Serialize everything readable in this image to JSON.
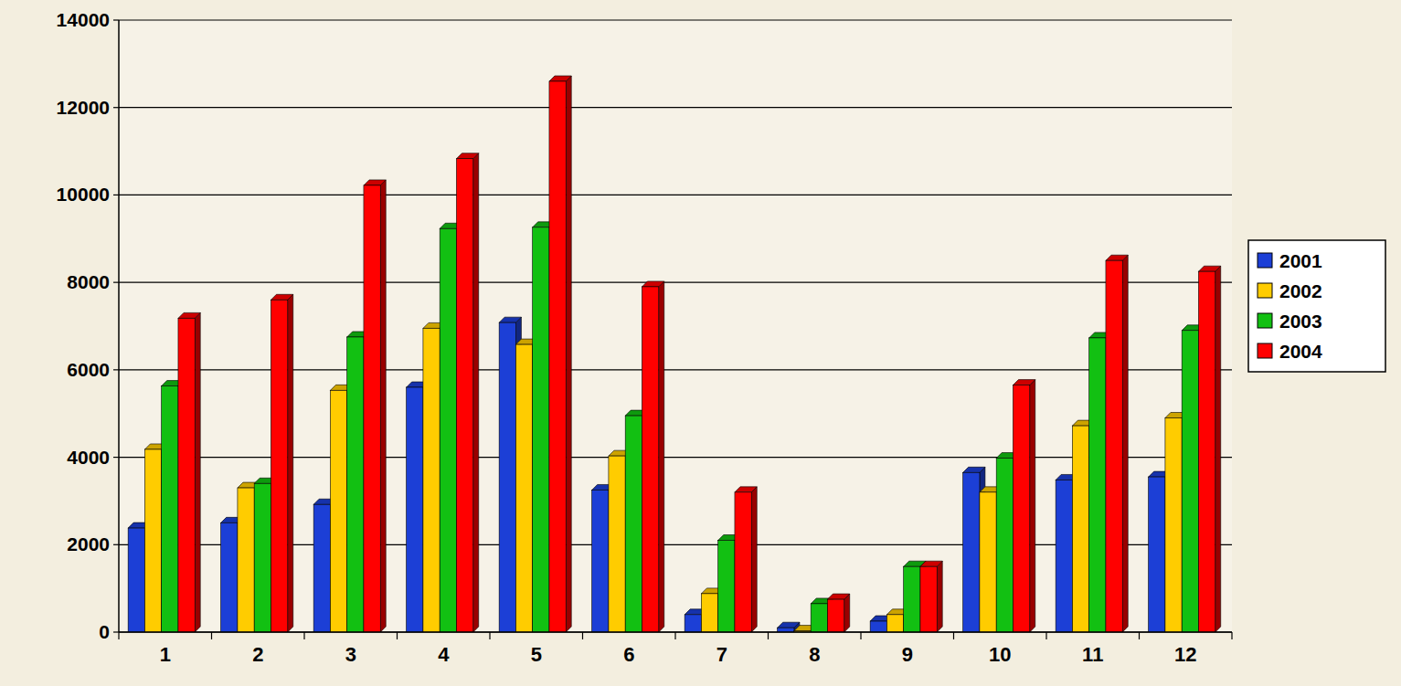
{
  "chart_data": {
    "type": "bar",
    "categories": [
      "1",
      "2",
      "3",
      "4",
      "5",
      "6",
      "7",
      "8",
      "9",
      "10",
      "11",
      "12"
    ],
    "series": [
      {
        "name": "2001",
        "color": "#1c3fd6",
        "values": [
          2380,
          2500,
          2920,
          5600,
          7080,
          3250,
          400,
          100,
          250,
          3650,
          3480,
          3550
        ]
      },
      {
        "name": "2002",
        "color": "#ffcc00",
        "values": [
          4180,
          3300,
          5530,
          6950,
          6580,
          4030,
          880,
          30,
          400,
          3200,
          4720,
          4900
        ]
      },
      {
        "name": "2003",
        "color": "#12c012",
        "values": [
          5630,
          3400,
          6750,
          9230,
          9260,
          4950,
          2100,
          650,
          1500,
          3980,
          6730,
          6900
        ]
      },
      {
        "name": "2004",
        "color": "#ff0000",
        "values": [
          7180,
          7600,
          10220,
          10830,
          12600,
          7900,
          3200,
          750,
          1500,
          5650,
          8500,
          8250
        ]
      }
    ],
    "ylim": [
      0,
      14000
    ],
    "yticks": [
      0,
      2000,
      4000,
      6000,
      8000,
      10000,
      12000,
      14000
    ],
    "grid": true,
    "legend": "right"
  }
}
